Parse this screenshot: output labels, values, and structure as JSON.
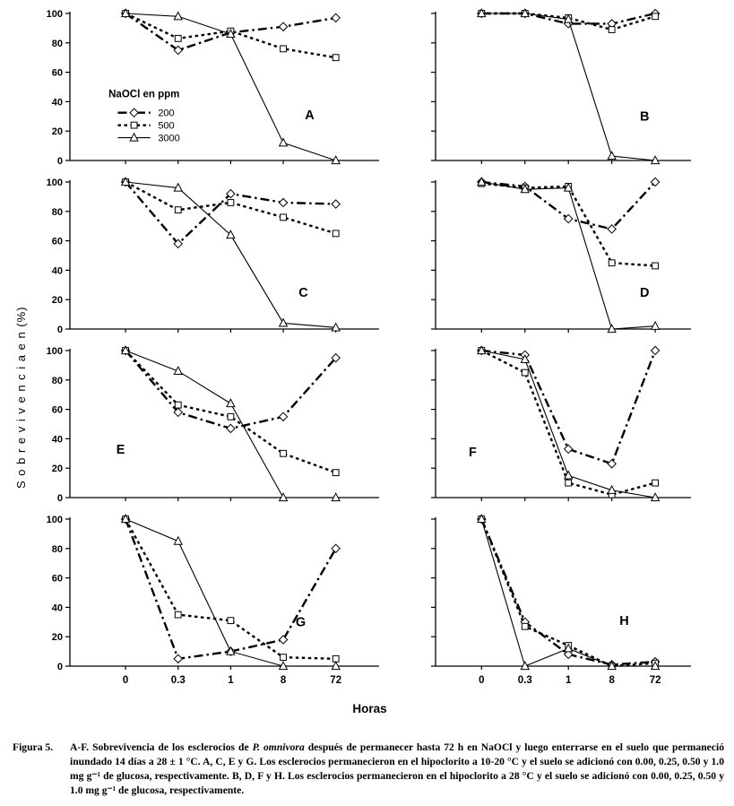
{
  "figure": {
    "ylabel": "S o b r e v i v e n c i a  e n  (%)",
    "xlabel": "Horas"
  },
  "legend": {
    "title": "NaOCl en ppm",
    "entries": [
      "200",
      "500",
      "3000"
    ]
  },
  "chart_data": {
    "type": "line",
    "title": "",
    "xlabel": "Horas",
    "ylabel": "Sobrevivencia en (%)",
    "x_categories": [
      "0",
      "0.3",
      "1",
      "8",
      "72"
    ],
    "ylim": [
      0,
      100
    ],
    "yticks": [
      0,
      20,
      40,
      60,
      80,
      100
    ],
    "legend_title": "NaOCl en ppm",
    "series_styles": [
      {
        "name": "200",
        "marker": "diamond",
        "line": "dashdot"
      },
      {
        "name": "500",
        "marker": "square",
        "line": "dashed"
      },
      {
        "name": "3000",
        "marker": "triangle",
        "line": "solid"
      }
    ],
    "panels": [
      {
        "label": "A",
        "letter_x": 0.76,
        "letter_y": 0.72,
        "show_legend": true,
        "values": [
          [
            100,
            75,
            87,
            91,
            97
          ],
          [
            100,
            83,
            88,
            76,
            70
          ],
          [
            100,
            98,
            86,
            12,
            0
          ]
        ]
      },
      {
        "label": "B",
        "letter_x": 0.8,
        "letter_y": 0.73,
        "show_legend": false,
        "values": [
          [
            100,
            100,
            93,
            93,
            100
          ],
          [
            100,
            100,
            97,
            89,
            98
          ],
          [
            100,
            100,
            96,
            3,
            0
          ]
        ]
      },
      {
        "label": "C",
        "letter_x": 0.74,
        "letter_y": 0.78,
        "show_legend": false,
        "values": [
          [
            100,
            58,
            92,
            86,
            85
          ],
          [
            100,
            81,
            86,
            76,
            65
          ],
          [
            100,
            96,
            64,
            4,
            1
          ]
        ]
      },
      {
        "label": "D",
        "letter_x": 0.8,
        "letter_y": 0.78,
        "show_legend": false,
        "values": [
          [
            100,
            97,
            75,
            68,
            100
          ],
          [
            99,
            96,
            97,
            45,
            43
          ],
          [
            100,
            95,
            96,
            0,
            2
          ]
        ]
      },
      {
        "label": "E",
        "letter_x": 0.15,
        "letter_y": 0.7,
        "show_legend": false,
        "values": [
          [
            100,
            58,
            47,
            55,
            95
          ],
          [
            100,
            63,
            55,
            30,
            17
          ],
          [
            100,
            86,
            64,
            0,
            0
          ]
        ]
      },
      {
        "label": "F",
        "letter_x": 0.13,
        "letter_y": 0.72,
        "show_legend": false,
        "values": [
          [
            100,
            97,
            33,
            23,
            100
          ],
          [
            100,
            85,
            10,
            2,
            10
          ],
          [
            100,
            94,
            15,
            5,
            0
          ]
        ]
      },
      {
        "label": "G",
        "letter_x": 0.73,
        "letter_y": 0.73,
        "show_legend": false,
        "values": [
          [
            100,
            5,
            10,
            18,
            80
          ],
          [
            100,
            35,
            31,
            6,
            5
          ],
          [
            100,
            85,
            10,
            0,
            0
          ]
        ]
      },
      {
        "label": "H",
        "letter_x": 0.72,
        "letter_y": 0.72,
        "show_legend": false,
        "values": [
          [
            100,
            30,
            8,
            1,
            3
          ],
          [
            100,
            27,
            14,
            0,
            2
          ],
          [
            100,
            0,
            12,
            0,
            0
          ]
        ]
      }
    ]
  },
  "caption": {
    "label": "Figura 5.",
    "segments": [
      {
        "t": "A-F. Sobrevivencia de los esclerocios de "
      },
      {
        "t": "P. omnivora",
        "i": true
      },
      {
        "t": " después de permanecer hasta 72 h en NaOCl y luego enterrarse en el suelo que permaneció inundado 14 días a 28 ± 1 °C. A, C, E y G. Los esclerocios permanecieron en el hipoclorito a 10-20 °C y el suelo se adicionó con 0.00, 0.25, 0.50 y 1.0 mg g⁻¹ de glucosa, respectivamente. B, D, F y H. Los esclerocios permanecieron en el hipoclorito a 28 °C y el suelo se adicionó con 0.00, 0.25, 0.50 y 1.0 mg g⁻¹ de glucosa, respectivamente."
      }
    ]
  }
}
